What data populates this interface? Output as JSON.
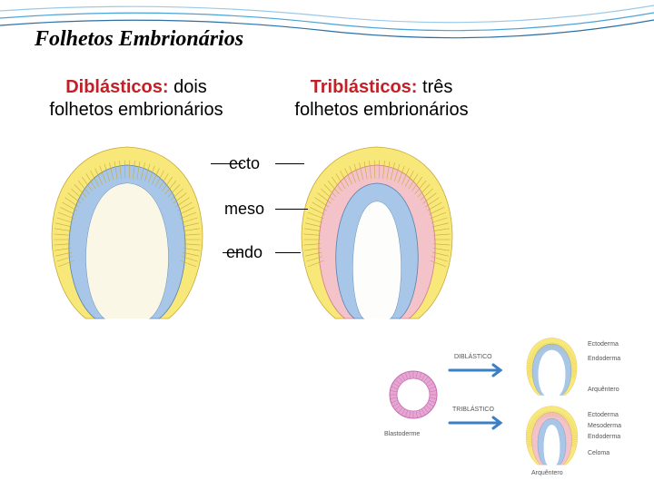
{
  "title": "Folhetos Embrionários",
  "diblastic": {
    "term": "Diblásticos:",
    "term_color": "#c22027",
    "rest_line1": " dois",
    "line2": "folhetos embrionários",
    "layers": {
      "ecto": {
        "fill": "#f8e87a",
        "stroke": "#c9a93a"
      },
      "endo": {
        "fill": "#a8c6e8",
        "stroke": "#5a86b5"
      },
      "cavity": {
        "fill": "#fbf7e6",
        "stroke": "none"
      }
    }
  },
  "triblastic": {
    "term": "Triblásticos:",
    "term_color": "#c22027",
    "rest_line1": " três",
    "line2": "folhetos embrionários",
    "layers": {
      "ecto": {
        "fill": "#f8e87a",
        "stroke": "#c9a93a"
      },
      "meso": {
        "fill": "#f3c3c9",
        "stroke": "#d6808f"
      },
      "endo": {
        "fill": "#a8c6e8",
        "stroke": "#5a86b5"
      },
      "cavity": {
        "fill": "#fdfdfb",
        "stroke": "none"
      }
    }
  },
  "mid_labels": {
    "ecto": "ecto",
    "meso": "meso",
    "endo": "endo",
    "label_color": "#000000",
    "line_color": "#000000"
  },
  "bottom": {
    "blastula_label": "Blastoderme",
    "diblastic_label": "DIBLÁSTICO",
    "triblastic_label": "TRIBLÁSTICO",
    "ecto_label": "Ectoderma",
    "endo_label": "Endoderma",
    "meso_label": "Mesoderma",
    "arch_label": "Arquêntero",
    "celoma_label": "Celoma",
    "arrow_color": "#3b7fc4",
    "blastula": {
      "outer_fill": "#e7a6d2",
      "outer_stroke": "#c66fb2",
      "inner_fill": "#ffffff"
    },
    "dib": {
      "ecto": {
        "fill": "#f8e87a",
        "stroke": "#c9a93a"
      },
      "endo": {
        "fill": "#a8c6e8",
        "stroke": "#5a86b5"
      },
      "cavity_fill": "#ffffff"
    },
    "trib": {
      "ecto": {
        "fill": "#f8e87a",
        "stroke": "#c9a93a"
      },
      "meso": {
        "fill": "#f3c3c9",
        "stroke": "#d6808f"
      },
      "endo": {
        "fill": "#a8c6e8",
        "stroke": "#5a86b5"
      },
      "cavity_fill": "#ffffff"
    }
  },
  "wave_colors": [
    "#9cc9e6",
    "#4aa3d6",
    "#2b6fa3"
  ]
}
